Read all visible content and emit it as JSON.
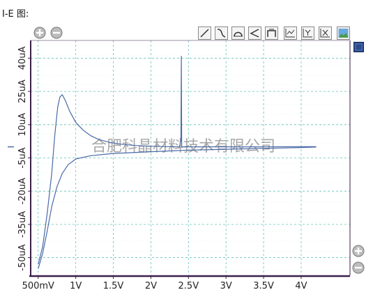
{
  "title": "I-E 图:",
  "watermark": "合肥科晶材料技术有限公司",
  "colors": {
    "curve": "#4a6aa8",
    "grid": "#66c2b8",
    "frame": "#3a1f4a",
    "series_box": "#2c4a8a"
  },
  "toolbar": {
    "zoom_in_icon": "plus-circle-icon",
    "zoom_out_icon": "minus-circle-icon",
    "tools": [
      "line-tool-icon",
      "curve-tool-icon",
      "arc-tool-icon",
      "angle-tool-icon",
      "measure-tool-icon",
      "axis-x-tool-icon",
      "axis-y-tool-icon",
      "axis-both-tool-icon",
      "image-export-icon"
    ]
  },
  "chart_data": {
    "type": "line",
    "title": "",
    "xlabel": "",
    "ylabel": "",
    "x_ticks": [
      "500mV",
      "1V",
      "1.5V",
      "2V",
      "2.5V",
      "3V",
      "3.5V",
      "4V"
    ],
    "x_tick_values": [
      0.5,
      1.0,
      1.5,
      2.0,
      2.5,
      3.0,
      3.5,
      4.0
    ],
    "y_ticks": [
      "40uA",
      "25uA",
      "10uA",
      "-5uA",
      "-20uA",
      "-35uA",
      "-50uA"
    ],
    "y_tick_values": [
      40,
      25,
      10,
      -5,
      -20,
      -35,
      -50
    ],
    "xlim": [
      0.4,
      4.65
    ],
    "ylim": [
      -58,
      48
    ],
    "grid": true,
    "series": [
      {
        "values": [
          [
            0.5,
            -53
          ],
          [
            0.56,
            -45
          ],
          [
            0.62,
            -30
          ],
          [
            0.68,
            -12
          ],
          [
            0.72,
            5
          ],
          [
            0.76,
            18
          ],
          [
            0.79,
            22.5
          ],
          [
            0.82,
            23.5
          ],
          [
            0.86,
            21
          ],
          [
            0.92,
            16
          ],
          [
            1.0,
            11
          ],
          [
            1.1,
            7.5
          ],
          [
            1.2,
            5
          ],
          [
            1.3,
            3.4
          ],
          [
            1.45,
            2
          ],
          [
            1.6,
            1.2
          ],
          [
            1.8,
            0.6
          ],
          [
            2.0,
            0.3
          ],
          [
            2.2,
            0.1
          ],
          [
            2.38,
            0
          ],
          [
            2.4,
            3
          ],
          [
            2.405,
            41
          ],
          [
            2.41,
            0
          ],
          [
            2.6,
            0
          ],
          [
            3.0,
            0
          ],
          [
            3.5,
            0
          ],
          [
            4.0,
            0.1
          ],
          [
            4.2,
            0.1
          ]
        ]
      },
      {
        "values": [
          [
            0.5,
            -55
          ],
          [
            0.56,
            -48
          ],
          [
            0.62,
            -38
          ],
          [
            0.68,
            -27
          ],
          [
            0.75,
            -18
          ],
          [
            0.82,
            -12
          ],
          [
            0.9,
            -8
          ],
          [
            1.0,
            -5.5
          ],
          [
            1.2,
            -4
          ],
          [
            1.5,
            -3
          ],
          [
            2.0,
            -2.2
          ],
          [
            2.5,
            -1.5
          ],
          [
            3.0,
            -1.1
          ],
          [
            3.5,
            -0.7
          ],
          [
            4.0,
            -0.3
          ],
          [
            4.2,
            -0.1
          ]
        ]
      }
    ]
  }
}
